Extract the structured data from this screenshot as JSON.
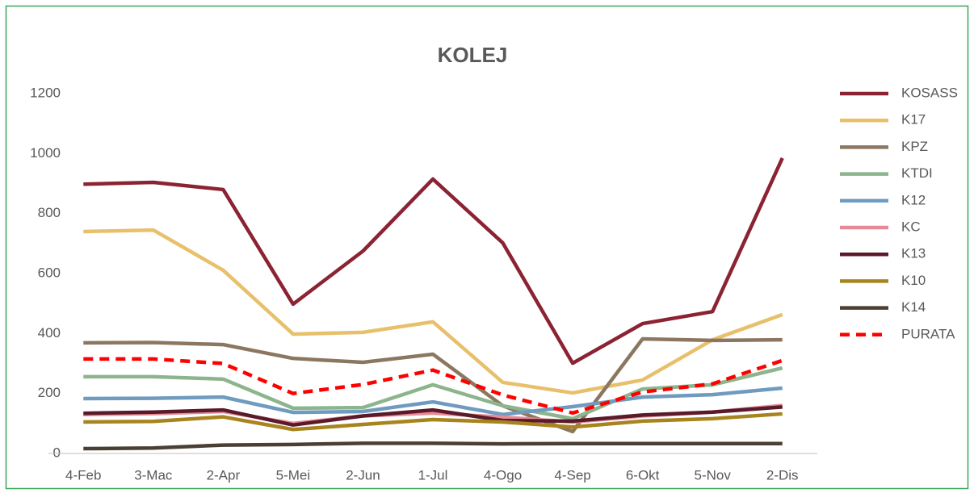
{
  "chart_data": {
    "type": "line",
    "title": "KOLEJ",
    "categories": [
      "4-Feb",
      "3-Mac",
      "2-Apr",
      "5-Mei",
      "2-Jun",
      "1-Jul",
      "4-Ogo",
      "4-Sep",
      "6-Okt",
      "5-Nov",
      "2-Dis"
    ],
    "ylim": [
      0,
      1200
    ],
    "yticks": [
      0,
      200,
      400,
      600,
      800,
      1000,
      1200
    ],
    "grid": false,
    "legend": "right",
    "series": [
      {
        "name": "KOSASS",
        "color": "#8b2332",
        "values": [
          898,
          904,
          880,
          498,
          675,
          915,
          702,
          301,
          433,
          473,
          985
        ]
      },
      {
        "name": "K17",
        "color": "#e8c06c",
        "values": [
          740,
          745,
          611,
          398,
          404,
          439,
          237,
          202,
          245,
          379,
          463
        ]
      },
      {
        "name": "KPZ",
        "color": "#8b7760",
        "values": [
          369,
          370,
          363,
          317,
          304,
          331,
          159,
          73,
          382,
          377,
          379
        ]
      },
      {
        "name": "KTDI",
        "color": "#8db58d",
        "values": [
          256,
          256,
          248,
          151,
          153,
          229,
          159,
          116,
          215,
          229,
          285
        ]
      },
      {
        "name": "K12",
        "color": "#6f9bbf",
        "values": [
          183,
          184,
          188,
          137,
          140,
          172,
          130,
          156,
          188,
          196,
          218
        ]
      },
      {
        "name": "KC",
        "color": "#e58a96",
        "values": [
          130,
          133,
          140,
          100,
          125,
          135,
          121,
          105,
          125,
          138,
          160
        ]
      },
      {
        "name": "K13",
        "color": "#5a1a2a",
        "values": [
          134,
          138,
          145,
          95,
          125,
          145,
          110,
          108,
          128,
          138,
          155
        ]
      },
      {
        "name": "K10",
        "color": "#a8841f",
        "values": [
          105,
          107,
          122,
          80,
          97,
          113,
          105,
          88,
          108,
          116,
          132
        ]
      },
      {
        "name": "K14",
        "color": "#4a3f32",
        "values": [
          16,
          18,
          28,
          30,
          34,
          34,
          32,
          33,
          33,
          33,
          33
        ]
      },
      {
        "name": "PURATA",
        "color": "#ff0000",
        "dashed": true,
        "values": [
          315,
          315,
          300,
          200,
          230,
          278,
          195,
          135,
          205,
          232,
          310
        ]
      }
    ]
  }
}
